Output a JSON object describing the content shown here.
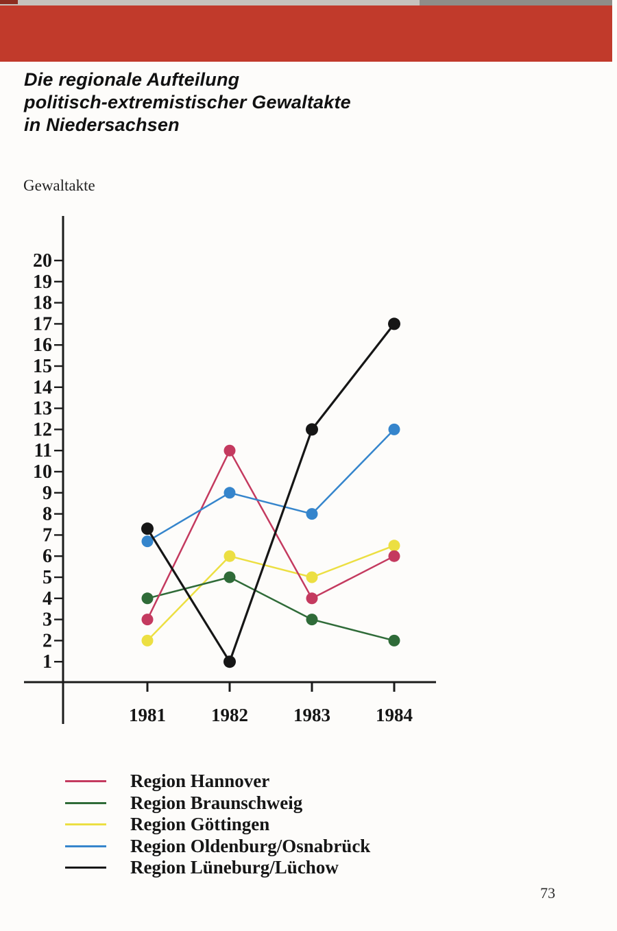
{
  "page": {
    "title_lines": [
      "Die regionale Aufteilung",
      "politisch-extremistischer Gewaltakte",
      "in Niedersachsen"
    ],
    "banner_color": "#c13a2b",
    "page_number": "73"
  },
  "chart_data": {
    "type": "line",
    "title": "Die regionale Aufteilung politisch-extremistischer Gewaltakte in Niedersachsen",
    "ylabel": "Gewaltakte",
    "xlabel": "",
    "x": [
      1981,
      1982,
      1983,
      1984
    ],
    "x_tick_labels": [
      "1981",
      "1982",
      "1983",
      "1984"
    ],
    "ylim": [
      0,
      21
    ],
    "yticks": [
      1,
      2,
      3,
      4,
      5,
      6,
      7,
      8,
      9,
      10,
      11,
      12,
      13,
      14,
      15,
      16,
      17,
      18,
      19,
      20
    ],
    "grid": false,
    "legend_position": "bottom-left",
    "axis_color": "#1b1b1b",
    "series": [
      {
        "name": "Region Hannover",
        "color": "#c43a5f",
        "values": [
          3,
          11,
          4,
          6
        ]
      },
      {
        "name": "Region Braunschweig",
        "color": "#2f6b38",
        "values": [
          4,
          5,
          3,
          2
        ]
      },
      {
        "name": "Region Göttingen",
        "color": "#ecdf42",
        "values": [
          2,
          6,
          5,
          6.5
        ]
      },
      {
        "name": "Region Oldenburg/Osnabrück",
        "color": "#3585cc",
        "values": [
          6.7,
          9,
          8,
          12
        ]
      },
      {
        "name": "Region Lüneburg/Lüchow",
        "color": "#161616",
        "values": [
          7.3,
          1,
          12,
          17
        ]
      }
    ]
  }
}
